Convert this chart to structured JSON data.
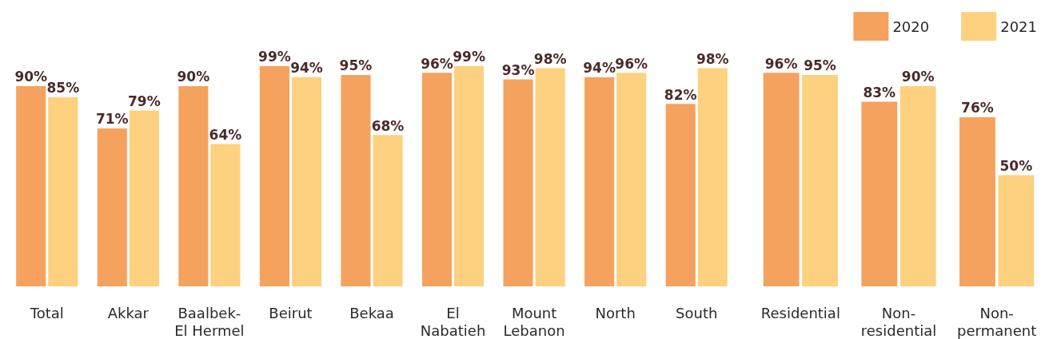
{
  "chart_data": [
    {
      "type": "bar",
      "categories": [
        "Total",
        "Akkar",
        "Baalbek-\nEl Hermel",
        "Beirut",
        "Bekaa",
        "El\nNabatieh",
        "Mount\nLebanon",
        "North",
        "South"
      ],
      "tick_labels": "x",
      "legend": false,
      "series": [
        {
          "color": "#f5a25e",
          "values": [
            90,
            71,
            90,
            99,
            95,
            96,
            93,
            94,
            82
          ],
          "value_labels": [
            "90%",
            "71%",
            "90%",
            "99%",
            "95%",
            "96%",
            "93%",
            "94%",
            "82%"
          ]
        },
        {
          "color": "#fdd17f",
          "values": [
            85,
            79,
            64,
            94,
            68,
            99,
            98,
            96,
            98
          ],
          "value_labels": [
            "85%",
            "79%",
            "64%",
            "94%",
            "68%",
            "99%",
            "98%",
            "96%",
            "98%"
          ]
        }
      ]
    },
    {
      "type": "bar",
      "categories": [
        "Residential",
        "Non-\nresidential",
        "Non-\npermanent"
      ],
      "tick_labels": "x",
      "legend": "top right",
      "series": [
        {
          "name": "2020",
          "color": "#f5a25e",
          "values": [
            96,
            83,
            76
          ],
          "value_labels": [
            "96%",
            "83%",
            "76%"
          ]
        },
        {
          "name": "2021",
          "color": "#fdd17f",
          "values": [
            95,
            90,
            50
          ],
          "value_labels": [
            "95%",
            "90%",
            "50%"
          ]
        }
      ]
    }
  ]
}
